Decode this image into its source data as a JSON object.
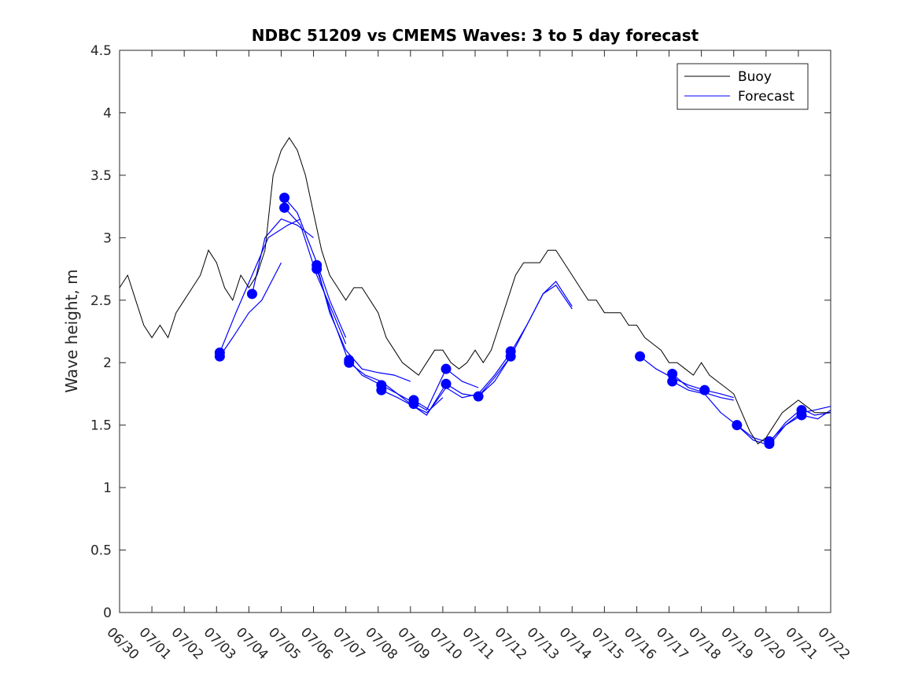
{
  "chart_data": {
    "type": "line",
    "title": "NDBC 51209 vs CMEMS Waves: 3 to 5 day forecast",
    "xlabel": "",
    "ylabel": "Wave height, m",
    "x_tick_labels": [
      "06/30",
      "07/01",
      "07/02",
      "07/03",
      "07/04",
      "07/05",
      "07/06",
      "07/07",
      "07/08",
      "07/09",
      "07/10",
      "07/11",
      "07/12",
      "07/13",
      "07/14",
      "07/15",
      "07/16",
      "07/17",
      "07/18",
      "07/19",
      "07/20",
      "07/21",
      "07/22"
    ],
    "xlim": [
      0,
      22
    ],
    "ylim": [
      0,
      4.5
    ],
    "y_ticks": [
      0,
      0.5,
      1,
      1.5,
      2,
      2.5,
      3,
      3.5,
      4,
      4.5
    ],
    "y_tick_labels": [
      "0",
      "0.5",
      "1",
      "1.5",
      "2",
      "2.5",
      "3",
      "3.5",
      "4",
      "4.5"
    ],
    "grid": false,
    "legend_position": "top-right",
    "colors": {
      "buoy": "#000000",
      "forecast": "#0000ff",
      "markers": "#0000ff"
    },
    "series": [
      {
        "name": "Buoy",
        "color": "#000000",
        "x": [
          0,
          0.25,
          0.5,
          0.75,
          1,
          1.25,
          1.5,
          1.75,
          2,
          2.25,
          2.5,
          2.75,
          3,
          3.25,
          3.5,
          3.75,
          4,
          4.25,
          4.5,
          4.75,
          5,
          5.25,
          5.5,
          5.75,
          6,
          6.25,
          6.5,
          6.75,
          7,
          7.25,
          7.5,
          7.75,
          8,
          8.25,
          8.5,
          8.75,
          9,
          9.25,
          9.5,
          9.75,
          10,
          10.25,
          10.5,
          10.75,
          11,
          11.25,
          11.5,
          11.75,
          12,
          12.25,
          12.5,
          12.75,
          13,
          13.25,
          13.5,
          13.75,
          14,
          14.25,
          14.5,
          14.75,
          15,
          15.25,
          15.5,
          15.75,
          16,
          16.25,
          16.5,
          16.75,
          17,
          17.25,
          17.5,
          17.75,
          18,
          18.25,
          18.5,
          18.75,
          19,
          19.25,
          19.5,
          19.75,
          20,
          20.25,
          20.5,
          20.75,
          21,
          21.25,
          21.5,
          21.75,
          22
        ],
        "y": [
          2.6,
          2.7,
          2.5,
          2.3,
          2.2,
          2.3,
          2.2,
          2.4,
          2.5,
          2.6,
          2.7,
          2.9,
          2.8,
          2.6,
          2.5,
          2.7,
          2.6,
          2.7,
          2.9,
          3.5,
          3.7,
          3.8,
          3.7,
          3.5,
          3.2,
          2.9,
          2.7,
          2.6,
          2.5,
          2.6,
          2.6,
          2.5,
          2.4,
          2.2,
          2.1,
          2.0,
          1.95,
          1.9,
          2.0,
          2.1,
          2.1,
          2.0,
          1.95,
          2.0,
          2.1,
          2.0,
          2.1,
          2.3,
          2.5,
          2.7,
          2.8,
          2.8,
          2.8,
          2.9,
          2.9,
          2.8,
          2.7,
          2.6,
          2.5,
          2.5,
          2.4,
          2.4,
          2.4,
          2.3,
          2.3,
          2.2,
          2.15,
          2.1,
          2.0,
          2.0,
          1.95,
          1.9,
          2.0,
          1.9,
          1.85,
          1.8,
          1.75,
          1.6,
          1.45,
          1.35,
          1.4,
          1.5,
          1.6,
          1.65,
          1.7,
          1.65,
          1.6,
          1.6,
          1.6
        ]
      },
      {
        "name": "Forecast",
        "color": "#0000ff",
        "segments": [
          {
            "x": [
              3.1,
              3.5,
              4.0,
              4.4,
              5.0
            ],
            "y": [
              2.05,
              2.2,
              2.4,
              2.5,
              2.8
            ]
          },
          {
            "x": [
              3.1,
              3.6,
              4.1,
              4.6,
              5.2,
              5.6
            ],
            "y": [
              2.08,
              2.4,
              2.7,
              3.0,
              3.1,
              3.15
            ]
          },
          {
            "x": [
              4.1,
              4.5,
              5.0,
              5.5,
              6.0
            ],
            "y": [
              2.55,
              3.0,
              3.15,
              3.1,
              3.0
            ]
          },
          {
            "x": [
              5.1,
              5.5,
              6.1,
              6.5,
              7.0
            ],
            "y": [
              3.32,
              3.2,
              2.8,
              2.5,
              2.2
            ]
          },
          {
            "x": [
              5.1,
              5.6,
              6.1,
              6.6,
              7.0
            ],
            "y": [
              3.24,
              3.1,
              2.7,
              2.4,
              2.15
            ]
          },
          {
            "x": [
              6.1,
              6.5,
              7.0,
              7.5,
              8.0,
              8.5,
              9.0
            ],
            "y": [
              2.78,
              2.4,
              2.1,
              1.95,
              1.92,
              1.9,
              1.85
            ]
          },
          {
            "x": [
              6.1,
              6.6,
              7.1,
              7.6,
              8.1,
              8.6,
              9.1,
              9.5,
              10.0
            ],
            "y": [
              2.75,
              2.35,
              2.0,
              1.9,
              1.85,
              1.75,
              1.65,
              1.6,
              1.72
            ]
          },
          {
            "x": [
              7.1,
              7.5,
              8.1,
              8.6,
              9.1,
              9.5,
              10.1,
              10.6,
              11.1
            ],
            "y": [
              2.02,
              1.9,
              1.82,
              1.75,
              1.68,
              1.62,
              1.95,
              1.85,
              1.8
            ]
          },
          {
            "x": [
              8.1,
              8.6,
              9.1,
              9.5,
              10.1,
              10.6,
              11.1,
              11.6,
              12.1
            ],
            "y": [
              1.78,
              1.72,
              1.65,
              1.58,
              1.83,
              1.75,
              1.73,
              1.85,
              2.05
            ]
          },
          {
            "x": [
              9.1,
              9.6,
              10.1,
              10.6,
              11.1,
              11.6,
              12.1,
              12.6,
              13.1,
              13.5,
              14.0
            ],
            "y": [
              1.7,
              1.62,
              1.8,
              1.72,
              1.75,
              1.9,
              2.08,
              2.3,
              2.55,
              2.65,
              2.45
            ]
          },
          {
            "x": [
              11.1,
              11.6,
              12.1,
              12.6,
              13.1,
              13.5,
              14.0
            ],
            "y": [
              1.73,
              1.88,
              2.05,
              2.3,
              2.55,
              2.62,
              2.43
            ]
          },
          {
            "x": [
              16.1,
              16.6,
              17.1,
              17.6,
              18.1,
              18.6,
              19.0
            ],
            "y": [
              2.05,
              1.95,
              1.88,
              1.82,
              1.78,
              1.75,
              1.72
            ]
          },
          {
            "x": [
              17.1,
              17.6,
              18.1,
              18.6,
              19.0
            ],
            "y": [
              1.91,
              1.8,
              1.76,
              1.72,
              1.7
            ]
          },
          {
            "x": [
              17.1,
              17.6,
              18.1,
              18.6,
              19.1,
              19.6,
              20.1,
              20.6,
              21.1,
              21.5,
              22.0
            ],
            "y": [
              1.85,
              1.78,
              1.75,
              1.6,
              1.5,
              1.38,
              1.34,
              1.5,
              1.6,
              1.62,
              1.65
            ]
          },
          {
            "x": [
              19.1,
              19.6,
              20.1,
              20.6,
              21.1,
              21.5,
              22.0
            ],
            "y": [
              1.5,
              1.4,
              1.36,
              1.52,
              1.63,
              1.58,
              1.6
            ]
          },
          {
            "x": [
              20.1,
              20.6,
              21.1,
              21.6,
              22.0
            ],
            "y": [
              1.37,
              1.5,
              1.58,
              1.55,
              1.62
            ]
          }
        ]
      }
    ],
    "markers": {
      "x": [
        3.1,
        3.1,
        4.1,
        5.1,
        5.1,
        6.1,
        6.1,
        7.1,
        7.1,
        8.1,
        8.1,
        9.1,
        9.1,
        10.1,
        10.1,
        11.1,
        12.1,
        12.1,
        16.1,
        17.1,
        17.1,
        18.1,
        19.1,
        20.1,
        20.1,
        21.1,
        21.1
      ],
      "y": [
        2.08,
        2.05,
        2.55,
        3.32,
        3.24,
        2.78,
        2.75,
        2.02,
        2.0,
        1.82,
        1.78,
        1.7,
        1.67,
        1.95,
        1.83,
        1.73,
        2.09,
        2.05,
        2.05,
        1.91,
        1.85,
        1.78,
        1.5,
        1.37,
        1.35,
        1.62,
        1.58
      ]
    }
  }
}
